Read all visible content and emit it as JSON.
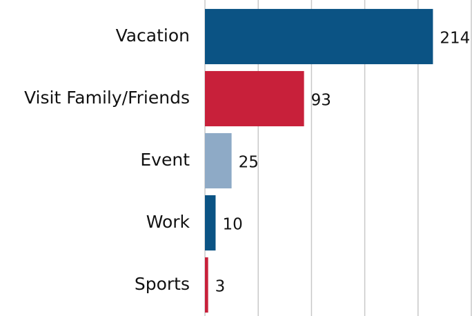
{
  "chart_data": {
    "type": "barh",
    "categories": [
      "Vacation",
      "Visit Family/Friends",
      "Event",
      "Work",
      "Sports"
    ],
    "values": [
      214,
      93,
      25,
      10,
      3
    ],
    "colors": [
      "#0b5384",
      "#c8203a",
      "#8eaac6",
      "#0b5384",
      "#c8203a"
    ],
    "xlim": [
      0,
      250
    ],
    "xticks": [
      0,
      50,
      100,
      150,
      200,
      250
    ],
    "grid": true
  }
}
